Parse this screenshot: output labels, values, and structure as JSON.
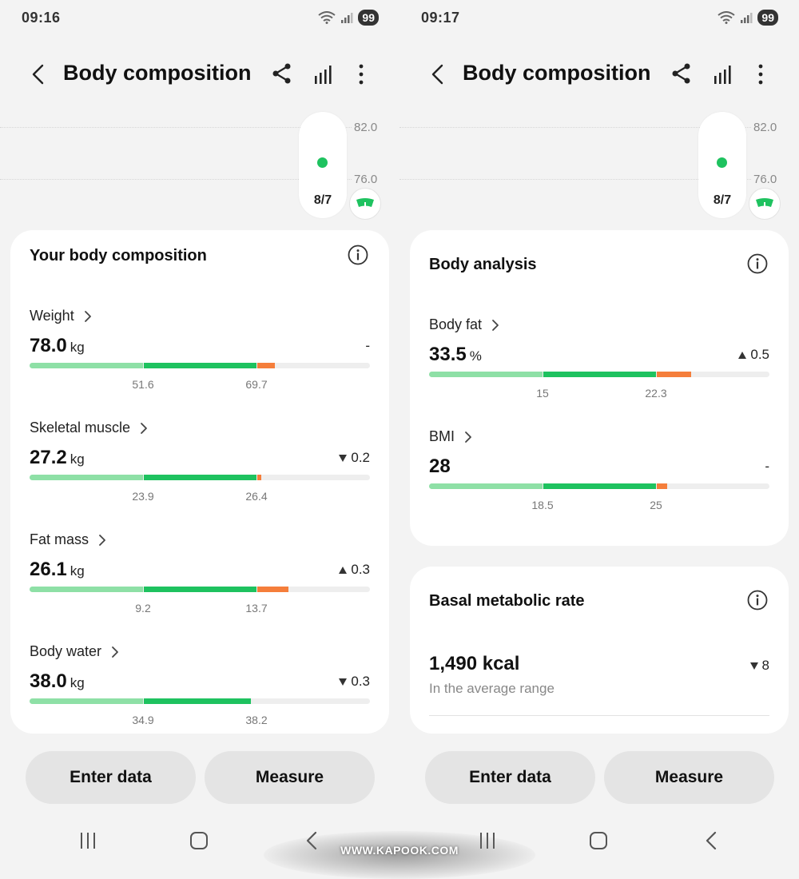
{
  "colors": {
    "low": "#8ee0a6",
    "normal": "#1ec25f",
    "high": "#f57e3b",
    "track": "#eeeeee"
  },
  "screens": [
    {
      "status": {
        "time": "09:16",
        "battery": "99"
      },
      "appbar": {
        "title": "Body composition",
        "icons": [
          "back-icon",
          "share-icon",
          "chart-icon",
          "more-icon"
        ]
      },
      "mini_chart": {
        "y_labels": [
          "82.0",
          "76.0"
        ],
        "date": "8/7"
      },
      "card": {
        "title": "Your body composition",
        "metrics": [
          {
            "label": "Weight",
            "value": "78.0",
            "unit": "kg",
            "change": "-",
            "dir": "none",
            "ticks": [
              "51.6",
              "69.7"
            ],
            "fill": 0.72
          },
          {
            "label": "Skeletal muscle",
            "value": "27.2",
            "unit": "kg",
            "change": "0.2",
            "dir": "down",
            "ticks": [
              "23.9",
              "26.4"
            ],
            "fill": 0.68
          },
          {
            "label": "Fat mass",
            "value": "26.1",
            "unit": "kg",
            "change": "0.3",
            "dir": "up",
            "ticks": [
              "9.2",
              "13.7"
            ],
            "fill": 0.76
          },
          {
            "label": "Body water",
            "value": "38.0",
            "unit": "kg",
            "change": "0.3",
            "dir": "down",
            "ticks": [
              "34.9",
              "38.2"
            ],
            "fill": 0.65
          }
        ]
      },
      "buttons": {
        "enter": "Enter data",
        "measure": "Measure"
      }
    },
    {
      "status": {
        "time": "09:17",
        "battery": "99"
      },
      "appbar": {
        "title": "Body composition",
        "icons": [
          "back-icon",
          "share-icon",
          "chart-icon",
          "more-icon"
        ]
      },
      "mini_chart": {
        "y_labels": [
          "82.0",
          "76.0"
        ],
        "date": "8/7"
      },
      "card": {
        "title": "Body analysis",
        "metrics": [
          {
            "label": "Body fat",
            "value": "33.5",
            "unit": "%",
            "change": "0.5",
            "dir": "up",
            "ticks": [
              "15",
              "22.3"
            ],
            "fill": 0.77
          },
          {
            "label": "BMI",
            "value": "28",
            "unit": "",
            "change": "-",
            "dir": "none",
            "ticks": [
              "18.5",
              "25"
            ],
            "fill": 0.7
          }
        ]
      },
      "bmr": {
        "title": "Basal metabolic rate",
        "value": "1,490 kcal",
        "subtitle": "In the average range",
        "change": "8",
        "dir": "down"
      },
      "buttons": {
        "enter": "Enter data",
        "measure": "Measure"
      }
    }
  ],
  "watermark": "WWW.KAPOOK.COM"
}
